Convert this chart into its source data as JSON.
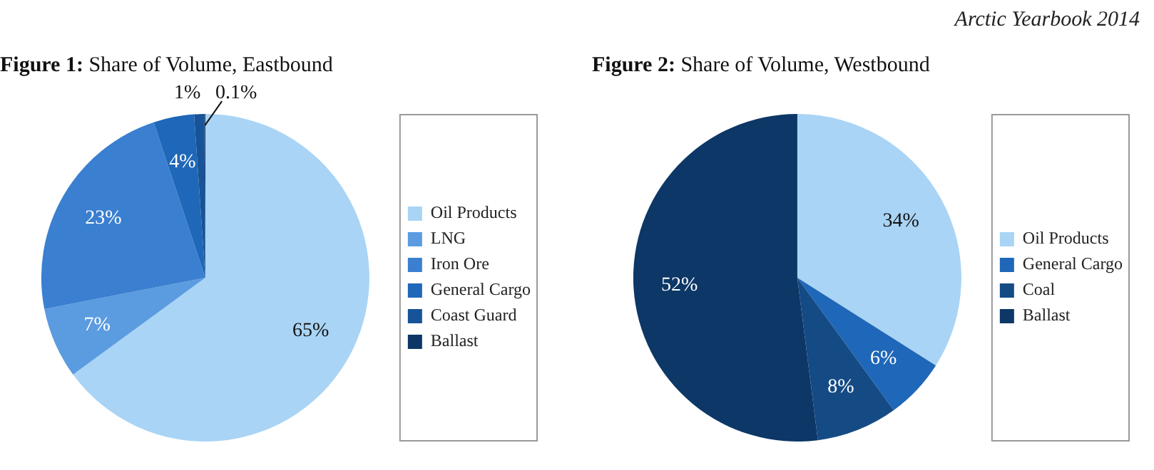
{
  "chart_data": [
    {
      "type": "pie",
      "title": "Figure 1: Share of Volume, Eastbound",
      "categories": [
        "Oil Products",
        "LNG",
        "Iron Ore",
        "General Cargo",
        "Coast Guard",
        "Ballast"
      ],
      "values": [
        65,
        7,
        23,
        4,
        1,
        0.1
      ],
      "colors": [
        "#a9d4f5",
        "#5b9be0",
        "#3a7fd0",
        "#1f67b8",
        "#175398",
        "#0c3766"
      ],
      "value_labels": [
        "65%",
        "7%",
        "23%",
        "4%",
        "1%",
        "0.1%"
      ],
      "legend": "right"
    },
    {
      "type": "pie",
      "title": "Figure 2: Share of Volume, Westbound",
      "categories": [
        "Oil Products",
        "General Cargo",
        "Coal",
        "Ballast"
      ],
      "values": [
        34,
        6,
        8,
        52
      ],
      "colors": [
        "#a9d4f5",
        "#1f67b8",
        "#154b85",
        "#0c3766"
      ],
      "value_labels": [
        "34%",
        "6%",
        "8%",
        "52%"
      ],
      "legend": "right",
      "annotations": [
        "Arctic Yearbook 2014"
      ]
    }
  ]
}
